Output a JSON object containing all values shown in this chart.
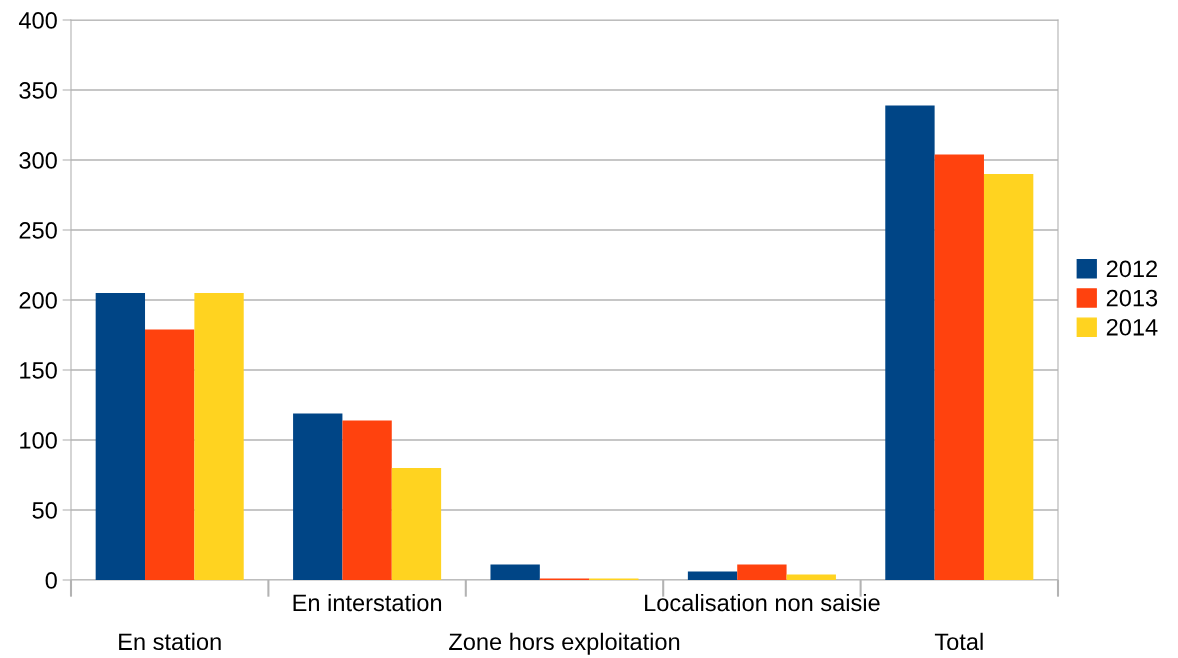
{
  "chart_data": {
    "type": "bar",
    "categories": [
      "En station",
      "En interstation",
      "Zone hors exploitation",
      "Localisation non saisie",
      "Total"
    ],
    "series": [
      {
        "name": "2012",
        "color": "#004586",
        "values": [
          205,
          119,
          11,
          6,
          339
        ]
      },
      {
        "name": "2013",
        "color": "#ff420e",
        "values": [
          179,
          114,
          1,
          11,
          304
        ]
      },
      {
        "name": "2014",
        "color": "#ffd320",
        "values": [
          205,
          80,
          1,
          4,
          290
        ]
      }
    ],
    "ylim": [
      0,
      400
    ],
    "yticks": [
      0,
      50,
      100,
      150,
      200,
      250,
      300,
      350,
      400
    ],
    "grid": "y",
    "legend": "right"
  }
}
